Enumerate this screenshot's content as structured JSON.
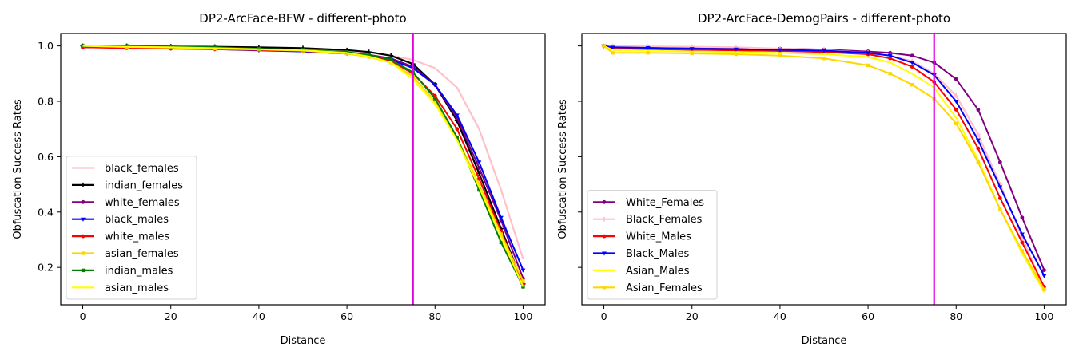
{
  "chart_data": [
    {
      "type": "line",
      "title": "DP2-ArcFace-BFW - different-photo",
      "xlabel": "Distance",
      "ylabel": "Obfuscation Success Rates",
      "xlim": [
        -5,
        105
      ],
      "ylim": [
        0.065,
        1.045
      ],
      "xticks": [
        0,
        20,
        40,
        60,
        80,
        100
      ],
      "yticks": [
        0.2,
        0.4,
        0.6,
        0.8,
        1.0
      ],
      "x_tick_labels": [
        "0",
        "20",
        "40",
        "60",
        "80",
        "100"
      ],
      "y_tick_labels": [
        "0.2",
        "0.4",
        "0.6",
        "0.8",
        "1.0"
      ],
      "vline": {
        "x": 75,
        "color": "#e000e0"
      },
      "legend_position": "lower-left",
      "grid": false,
      "x": [
        0,
        10,
        20,
        30,
        40,
        50,
        60,
        65,
        70,
        75,
        80,
        85,
        90,
        95,
        100
      ],
      "series": [
        {
          "name": "black_females",
          "color": "#ffc0cb",
          "marker": "none",
          "values": [
            1.0,
            1.0,
            0.998,
            0.996,
            0.993,
            0.99,
            0.983,
            0.977,
            0.965,
            0.95,
            0.92,
            0.85,
            0.7,
            0.48,
            0.23
          ]
        },
        {
          "name": "indian_females",
          "color": "#000000",
          "marker": "plus",
          "values": [
            1.0,
            1.0,
            0.998,
            0.997,
            0.995,
            0.992,
            0.985,
            0.978,
            0.965,
            0.935,
            0.86,
            0.73,
            0.54,
            0.34,
            0.14
          ]
        },
        {
          "name": "white_females",
          "color": "#800080",
          "marker": "dot",
          "values": [
            0.995,
            0.995,
            0.993,
            0.99,
            0.986,
            0.983,
            0.976,
            0.968,
            0.955,
            0.925,
            0.86,
            0.74,
            0.56,
            0.37,
            0.16
          ]
        },
        {
          "name": "black_males",
          "color": "#0000ff",
          "marker": "tri",
          "values": [
            0.995,
            0.994,
            0.992,
            0.988,
            0.984,
            0.98,
            0.972,
            0.963,
            0.95,
            0.92,
            0.86,
            0.75,
            0.58,
            0.38,
            0.19
          ]
        },
        {
          "name": "white_males",
          "color": "#ff0000",
          "marker": "dot",
          "values": [
            0.995,
            0.992,
            0.99,
            0.988,
            0.985,
            0.982,
            0.972,
            0.962,
            0.946,
            0.9,
            0.82,
            0.7,
            0.52,
            0.33,
            0.14
          ]
        },
        {
          "name": "asian_females",
          "color": "#ffd700",
          "marker": "square",
          "values": [
            1.0,
            0.996,
            0.994,
            0.99,
            0.987,
            0.983,
            0.972,
            0.96,
            0.94,
            0.89,
            0.8,
            0.67,
            0.5,
            0.32,
            0.15
          ]
        },
        {
          "name": "indian_males",
          "color": "#008000",
          "marker": "square",
          "values": [
            1.0,
            1.0,
            0.998,
            0.995,
            0.99,
            0.986,
            0.978,
            0.968,
            0.95,
            0.905,
            0.81,
            0.67,
            0.48,
            0.29,
            0.13
          ]
        },
        {
          "name": "asian_males",
          "color": "#ffff00",
          "marker": "none",
          "values": [
            1.0,
            0.997,
            0.995,
            0.992,
            0.988,
            0.984,
            0.975,
            0.962,
            0.94,
            0.88,
            0.79,
            0.66,
            0.49,
            0.31,
            0.13
          ]
        }
      ]
    },
    {
      "type": "line",
      "title": "DP2-ArcFace-DemogPairs - different-photo",
      "xlabel": "Distance",
      "ylabel": "Obfuscation Success Rates",
      "xlim": [
        -5,
        105
      ],
      "ylim": [
        0.065,
        1.045
      ],
      "xticks": [
        0,
        20,
        40,
        60,
        80,
        100
      ],
      "yticks": [
        0.2,
        0.4,
        0.6,
        0.8,
        1.0
      ],
      "x_tick_labels": [
        "0",
        "20",
        "40",
        "60",
        "80",
        "100"
      ],
      "y_tick_labels": [],
      "vline": {
        "x": 75,
        "color": "#e000e0"
      },
      "legend_position": "lower-left",
      "grid": false,
      "x": [
        0,
        2,
        10,
        20,
        30,
        40,
        50,
        60,
        65,
        70,
        75,
        80,
        85,
        90,
        95,
        100
      ],
      "series": [
        {
          "name": "White_Females",
          "color": "#800080",
          "marker": "dot",
          "values": [
            1.0,
            0.998,
            0.996,
            0.994,
            0.992,
            0.99,
            0.987,
            0.98,
            0.975,
            0.965,
            0.94,
            0.88,
            0.77,
            0.58,
            0.38,
            0.19
          ]
        },
        {
          "name": "Black_Females",
          "color": "#ffc0cb",
          "marker": "plus",
          "values": [
            1.0,
            1.0,
            0.998,
            0.997,
            0.995,
            0.99,
            0.985,
            0.975,
            0.965,
            0.945,
            0.9,
            0.82,
            0.68,
            0.5,
            0.31,
            0.12
          ]
        },
        {
          "name": "White_Males",
          "color": "#ff0000",
          "marker": "dot",
          "values": [
            1.0,
            0.99,
            0.988,
            0.986,
            0.984,
            0.982,
            0.978,
            0.97,
            0.955,
            0.925,
            0.87,
            0.77,
            0.63,
            0.45,
            0.29,
            0.13
          ]
        },
        {
          "name": "Black_Males",
          "color": "#0000ff",
          "marker": "tri",
          "values": [
            1.0,
            0.995,
            0.993,
            0.99,
            0.988,
            0.986,
            0.983,
            0.975,
            0.965,
            0.94,
            0.895,
            0.8,
            0.66,
            0.49,
            0.32,
            0.17
          ]
        },
        {
          "name": "Asian_Males",
          "color": "#ffff00",
          "marker": "none",
          "values": [
            1.0,
            0.985,
            0.983,
            0.98,
            0.978,
            0.975,
            0.97,
            0.96,
            0.94,
            0.9,
            0.85,
            0.74,
            0.59,
            0.41,
            0.25,
            0.11
          ]
        },
        {
          "name": "Asian_Females",
          "color": "#ffd700",
          "marker": "square",
          "values": [
            1.0,
            0.975,
            0.975,
            0.973,
            0.97,
            0.965,
            0.955,
            0.93,
            0.9,
            0.86,
            0.81,
            0.72,
            0.58,
            0.41,
            0.26,
            0.12
          ]
        }
      ]
    }
  ]
}
